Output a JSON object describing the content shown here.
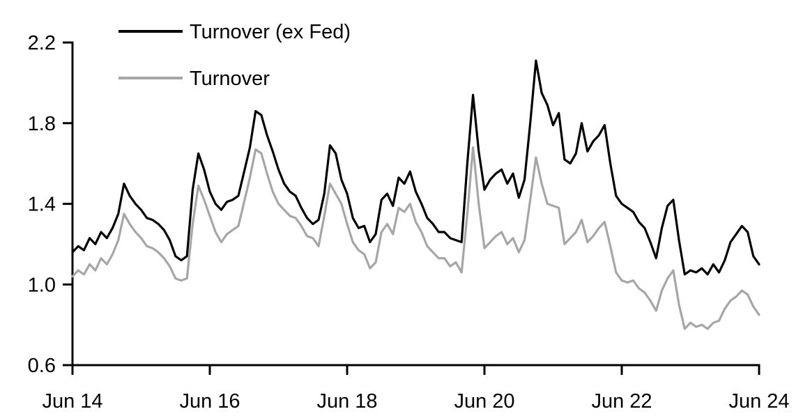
{
  "chart_data": {
    "type": "line",
    "title": "",
    "xlabel": "",
    "ylabel": "",
    "grid": false,
    "legend_position": "top-left",
    "ylim": [
      0.6,
      2.2
    ],
    "y_ticks": [
      0.6,
      1.0,
      1.4,
      1.8,
      2.2
    ],
    "y_tick_labels": [
      "0.6",
      "1.0",
      "1.4",
      "1.8",
      "2.2"
    ],
    "x_tick_labels": [
      "Jun 14",
      "Jun 16",
      "Jun 18",
      "Jun 20",
      "Jun 22",
      "Jun 24"
    ],
    "x_tick_month_index": [
      0,
      24,
      48,
      72,
      96,
      120
    ],
    "x_resolution": "monthly, Jun 2014 through Jun 2024 (121 points)",
    "series": [
      {
        "name": "Turnover (ex Fed)",
        "color": "#000000",
        "values": [
          1.16,
          1.19,
          1.17,
          1.23,
          1.2,
          1.26,
          1.23,
          1.28,
          1.35,
          1.5,
          1.44,
          1.4,
          1.37,
          1.33,
          1.32,
          1.3,
          1.27,
          1.22,
          1.14,
          1.12,
          1.14,
          1.47,
          1.65,
          1.57,
          1.46,
          1.4,
          1.37,
          1.41,
          1.42,
          1.44,
          1.56,
          1.68,
          1.86,
          1.84,
          1.74,
          1.66,
          1.57,
          1.5,
          1.46,
          1.44,
          1.38,
          1.33,
          1.3,
          1.32,
          1.45,
          1.69,
          1.65,
          1.52,
          1.45,
          1.33,
          1.28,
          1.29,
          1.21,
          1.25,
          1.42,
          1.45,
          1.39,
          1.53,
          1.5,
          1.56,
          1.46,
          1.4,
          1.33,
          1.3,
          1.26,
          1.26,
          1.23,
          1.22,
          1.21,
          1.6,
          1.94,
          1.66,
          1.47,
          1.52,
          1.55,
          1.57,
          1.5,
          1.55,
          1.43,
          1.52,
          1.8,
          2.11,
          1.95,
          1.89,
          1.79,
          1.85,
          1.62,
          1.6,
          1.65,
          1.8,
          1.66,
          1.71,
          1.74,
          1.79,
          1.6,
          1.44,
          1.4,
          1.38,
          1.36,
          1.31,
          1.28,
          1.21,
          1.13,
          1.28,
          1.39,
          1.42,
          1.22,
          1.05,
          1.07,
          1.06,
          1.08,
          1.05,
          1.1,
          1.06,
          1.12,
          1.21,
          1.25,
          1.29,
          1.26,
          1.14,
          1.1
        ]
      },
      {
        "name": "Turnover",
        "color": "#a6a6a6",
        "values": [
          1.04,
          1.07,
          1.05,
          1.1,
          1.07,
          1.13,
          1.1,
          1.15,
          1.22,
          1.35,
          1.3,
          1.26,
          1.23,
          1.19,
          1.18,
          1.16,
          1.13,
          1.09,
          1.03,
          1.02,
          1.03,
          1.3,
          1.49,
          1.42,
          1.34,
          1.26,
          1.21,
          1.25,
          1.27,
          1.29,
          1.41,
          1.53,
          1.67,
          1.65,
          1.55,
          1.46,
          1.4,
          1.37,
          1.34,
          1.33,
          1.29,
          1.24,
          1.23,
          1.19,
          1.34,
          1.5,
          1.45,
          1.4,
          1.3,
          1.21,
          1.17,
          1.15,
          1.08,
          1.11,
          1.26,
          1.3,
          1.25,
          1.38,
          1.36,
          1.4,
          1.31,
          1.26,
          1.19,
          1.16,
          1.13,
          1.13,
          1.09,
          1.11,
          1.06,
          1.35,
          1.68,
          1.4,
          1.18,
          1.21,
          1.24,
          1.26,
          1.2,
          1.23,
          1.16,
          1.22,
          1.42,
          1.63,
          1.5,
          1.4,
          1.39,
          1.38,
          1.2,
          1.23,
          1.26,
          1.32,
          1.21,
          1.24,
          1.28,
          1.31,
          1.19,
          1.06,
          1.02,
          1.01,
          1.02,
          0.98,
          0.96,
          0.92,
          0.87,
          0.97,
          1.03,
          1.07,
          0.9,
          0.78,
          0.81,
          0.79,
          0.8,
          0.78,
          0.81,
          0.82,
          0.88,
          0.92,
          0.94,
          0.97,
          0.95,
          0.89,
          0.85
        ]
      }
    ]
  },
  "legend": {
    "items": [
      {
        "label": "Turnover (ex Fed)",
        "color": "#000000"
      },
      {
        "label": "Turnover",
        "color": "#a6a6a6"
      }
    ]
  }
}
